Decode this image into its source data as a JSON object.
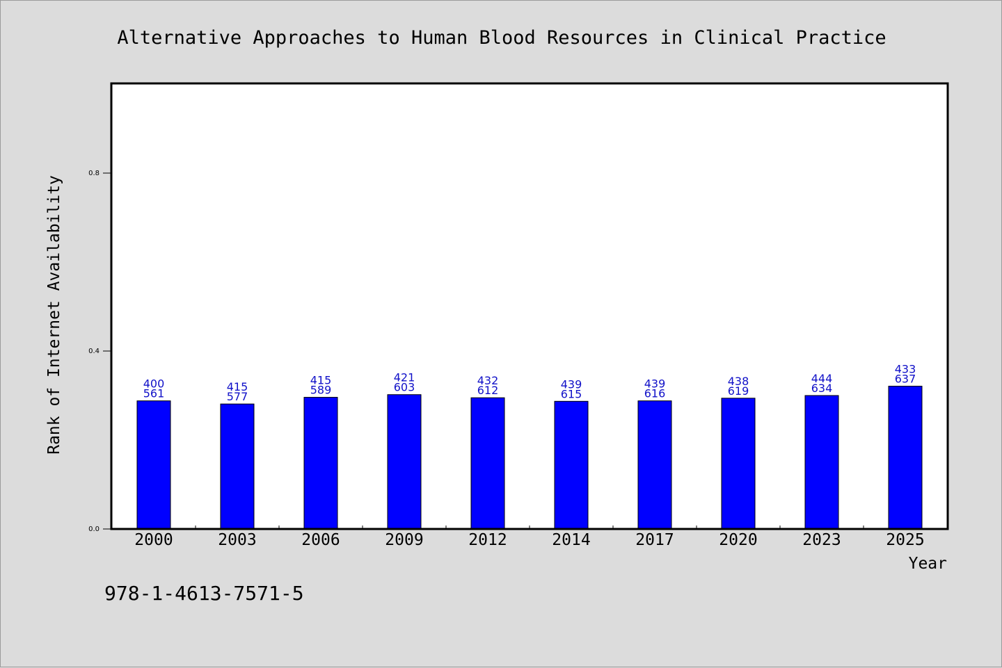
{
  "chart_data": {
    "type": "bar",
    "title": "Alternative Approaches to Human Blood Resources in Clinical Practice",
    "xlabel": "Year",
    "ylabel": "Rank of Internet Availability",
    "categories": [
      "2000",
      "2003",
      "2006",
      "2009",
      "2012",
      "2014",
      "2017",
      "2020",
      "2023",
      "2025"
    ],
    "values": [
      0.288,
      0.281,
      0.296,
      0.302,
      0.295,
      0.287,
      0.288,
      0.294,
      0.3,
      0.321
    ],
    "labels_top": [
      "400",
      "415",
      "415",
      "421",
      "432",
      "439",
      "439",
      "438",
      "444",
      "433"
    ],
    "labels_bottom": [
      "561",
      "577",
      "589",
      "603",
      "612",
      "615",
      "616",
      "619",
      "634",
      "637"
    ],
    "ylim": [
      0,
      1.0
    ],
    "yticks": [
      0.0,
      0.4,
      0.8
    ],
    "ytick_labels": [
      "0.0",
      "0.4",
      "0.8"
    ],
    "grid": false,
    "bar_color": "#0000ff",
    "label_color": "#1010c8",
    "background": "#dcdcdc",
    "plot_background": "#ffffff"
  },
  "annotation": "978-1-4613-7571-5"
}
